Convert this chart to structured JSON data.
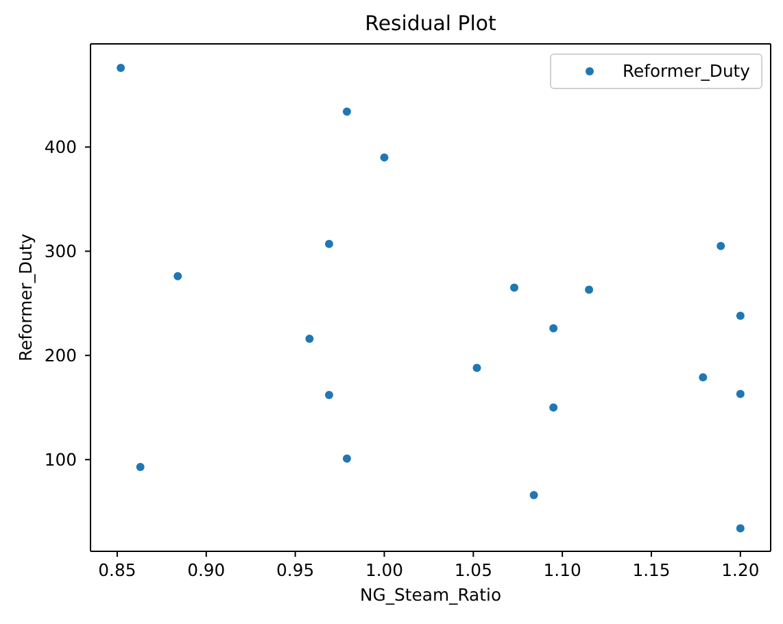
{
  "chart_data": {
    "type": "scatter",
    "title": "Residual Plot",
    "xlabel": "NG_Steam_Ratio",
    "ylabel": "Reformer_Duty",
    "x": [
      0.852,
      0.884,
      0.969,
      0.979,
      1.0,
      0.958,
      0.969,
      0.979,
      0.863,
      1.073,
      1.115,
      1.2,
      1.095,
      1.052,
      1.179,
      1.2,
      1.095,
      1.084,
      1.2,
      1.189
    ],
    "series": [
      {
        "name": "Reformer_Duty",
        "color": "#1f77b4",
        "values": [
          476,
          276,
          307,
          434,
          390,
          216,
          162,
          101,
          93,
          265,
          263,
          238,
          226,
          188,
          179,
          163,
          150,
          66,
          34,
          305
        ]
      }
    ],
    "xlim": [
      0.835,
      1.217
    ],
    "ylim": [
      12,
      499
    ],
    "xticks": [
      0.85,
      {
        "value": 0.9,
        "label": "0.90"
      },
      0.95,
      {
        "value": 1,
        "label": "1.00"
      },
      1.05,
      {
        "value": 1.1,
        "label": "1.10"
      },
      1.15,
      {
        "value": 1.2,
        "label": "1.20"
      }
    ],
    "yticks": [
      100,
      200,
      300,
      400
    ],
    "grid": false,
    "legend": "top right",
    "marker": "circle"
  }
}
